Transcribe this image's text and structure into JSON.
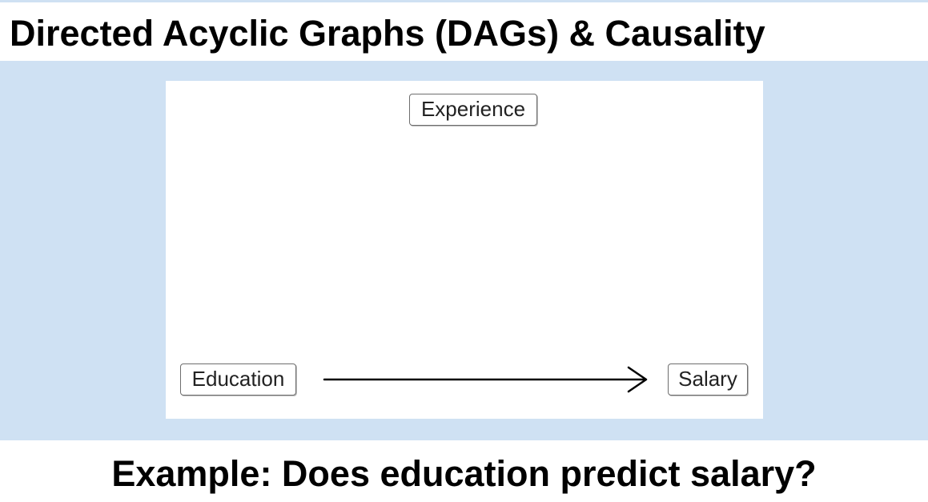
{
  "slide": {
    "title": "Directed Acyclic Graphs (DAGs) & Causality",
    "caption": "Example: Does education predict salary?"
  },
  "diagram": {
    "nodes": [
      {
        "id": "experience",
        "label": "Experience"
      },
      {
        "id": "education",
        "label": "Education"
      },
      {
        "id": "salary",
        "label": "Salary"
      }
    ],
    "edges": [
      {
        "from": "education",
        "to": "salary"
      }
    ]
  },
  "colors": {
    "band": "#cfe1f3",
    "node_border": "#6e6e6e",
    "arrow": "#000000"
  }
}
